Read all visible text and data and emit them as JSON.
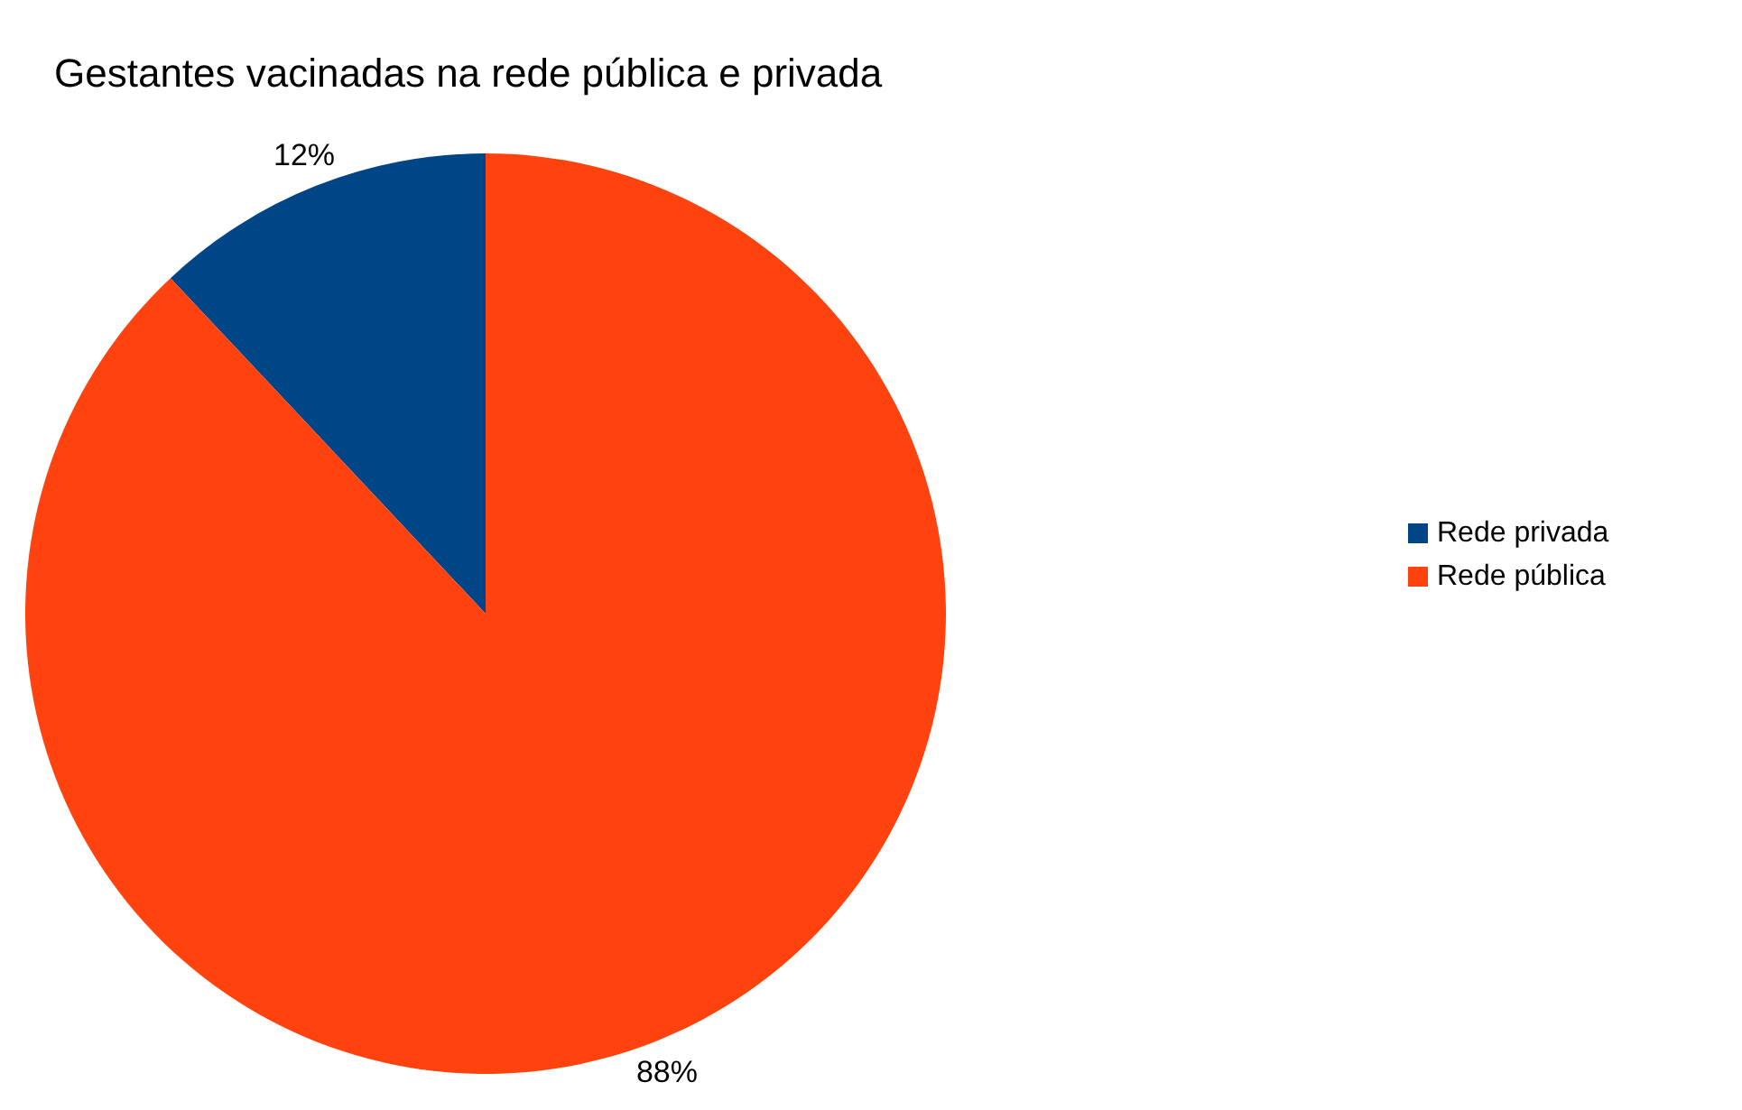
{
  "chart_data": {
    "type": "pie",
    "title": "Gestantes vacinadas na rede pública e privada",
    "categories": [
      "Rede privada",
      "Rede pública"
    ],
    "values": [
      12,
      88
    ],
    "colors": [
      "#004586",
      "#ff420e"
    ],
    "value_labels": [
      "12%",
      "88%"
    ],
    "legend": "right"
  }
}
